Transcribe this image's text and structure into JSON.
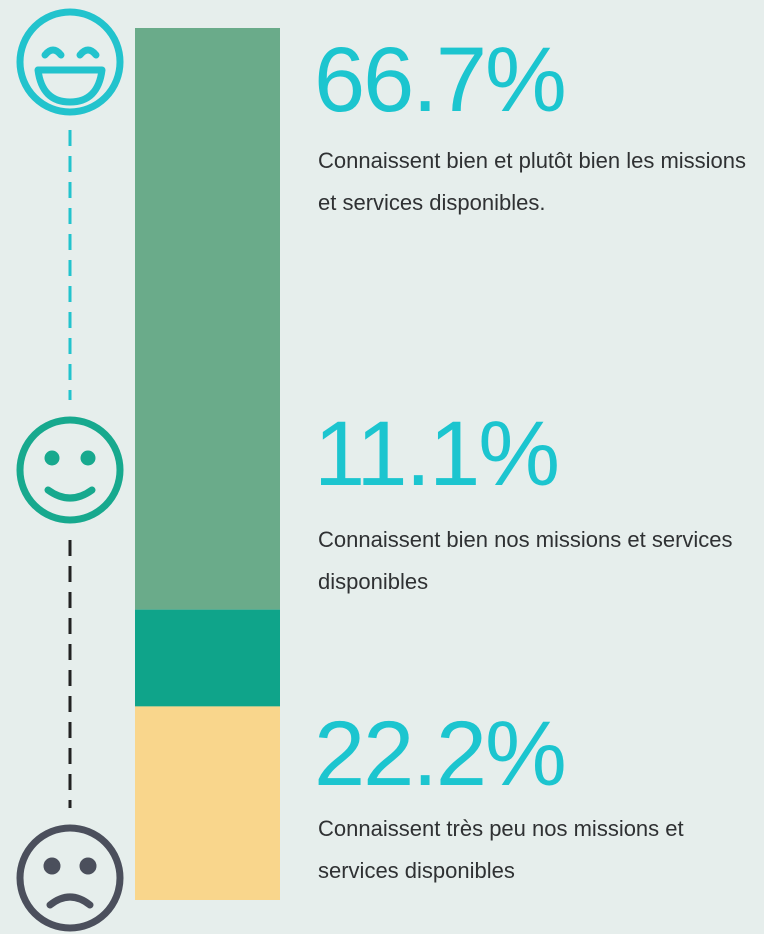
{
  "chart_data": {
    "type": "stacked-bar",
    "series": [
      {
        "name": "Connaissent bien et plutôt bien les missions et services disponibles.",
        "color": "#6aab8a",
        "values": [
          66.7
        ],
        "value_labels": [
          "66.7%"
        ]
      },
      {
        "name": "Connaissent bien nos missions et services disponibles",
        "color": "#0fa48a",
        "values": [
          11.1
        ],
        "value_labels": [
          "11.1%"
        ]
      },
      {
        "name": "Connaissent très peu nos missions et services disponibles",
        "color": "#f9d68c",
        "values": [
          22.2
        ],
        "value_labels": [
          "22.2%"
        ]
      }
    ]
  }
}
